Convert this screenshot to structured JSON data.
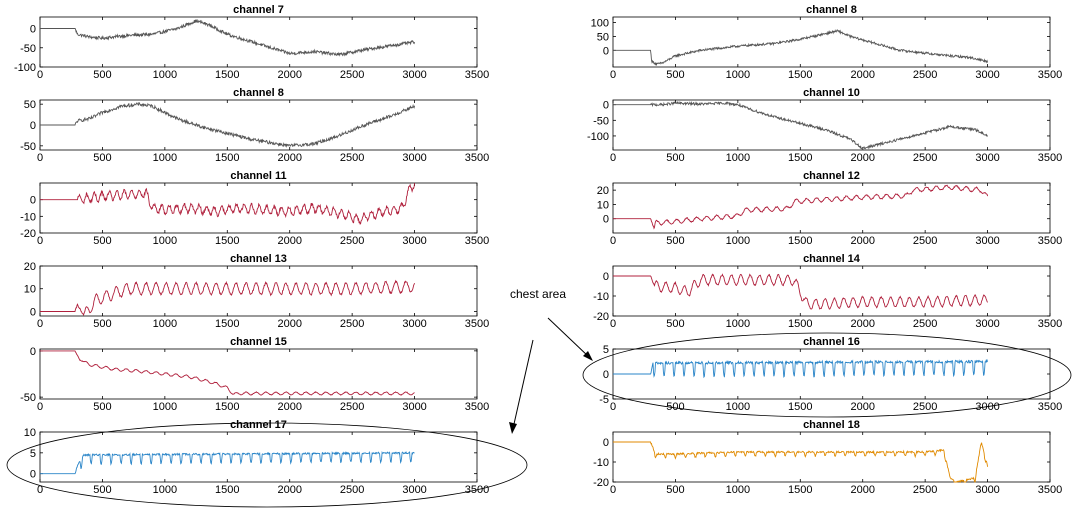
{
  "chart_data": [
    {
      "id": "p7",
      "type": "line",
      "title": "channel 7",
      "xlim": [
        0,
        3500
      ],
      "ylim": [
        -100,
        30
      ],
      "yticks": [
        -100,
        -50,
        0
      ],
      "xticks": [
        0,
        500,
        1000,
        1500,
        2000,
        2500,
        3000,
        3500
      ],
      "color": "#555555",
      "noise": 4,
      "series": [
        {
          "x": [
            0,
            280,
            300,
            400,
            500,
            700,
            900,
            1100,
            1250,
            1350,
            1500,
            1700,
            2000,
            2200,
            2400,
            2600,
            2800,
            3000
          ],
          "values": [
            0,
            0,
            -15,
            -22,
            -25,
            -18,
            -15,
            0,
            20,
            10,
            -15,
            -35,
            -65,
            -60,
            -68,
            -55,
            -45,
            -35
          ]
        }
      ]
    },
    {
      "id": "p8a",
      "type": "line",
      "title": "channel 8",
      "xlim": [
        0,
        3500
      ],
      "ylim": [
        -60,
        120
      ],
      "yticks": [
        0,
        50,
        100
      ],
      "xticks": [
        0,
        500,
        1000,
        1500,
        2000,
        2500,
        3000,
        3500
      ],
      "color": "#555555",
      "noise": 4,
      "series": [
        {
          "x": [
            0,
            300,
            310,
            350,
            400,
            500,
            700,
            1000,
            1300,
            1500,
            1700,
            1800,
            1900,
            2100,
            2300,
            2500,
            2700,
            2850,
            3000
          ],
          "values": [
            0,
            0,
            -40,
            -50,
            -45,
            -20,
            0,
            15,
            25,
            40,
            60,
            70,
            50,
            25,
            0,
            -10,
            -20,
            -25,
            -40
          ]
        }
      ]
    },
    {
      "id": "p8b",
      "type": "line",
      "title": "channel 8",
      "xlim": [
        0,
        3500
      ],
      "ylim": [
        -60,
        60
      ],
      "yticks": [
        -50,
        0,
        50
      ],
      "xticks": [
        0,
        500,
        1000,
        1500,
        2000,
        2500,
        3000,
        3500
      ],
      "color": "#555555",
      "noise": 4,
      "series": [
        {
          "x": [
            0,
            280,
            300,
            400,
            500,
            650,
            800,
            900,
            1100,
            1300,
            1500,
            1700,
            2000,
            2200,
            2400,
            2600,
            2800,
            3000
          ],
          "values": [
            0,
            0,
            10,
            15,
            30,
            45,
            50,
            45,
            15,
            -5,
            -20,
            -35,
            -50,
            -45,
            -25,
            0,
            20,
            45
          ]
        }
      ]
    },
    {
      "id": "p10",
      "type": "line",
      "title": "channel 10",
      "xlim": [
        0,
        3500
      ],
      "ylim": [
        -145,
        15
      ],
      "yticks": [
        -100,
        -50,
        0
      ],
      "xticks": [
        0,
        500,
        1000,
        1500,
        2000,
        2500,
        3000,
        3500
      ],
      "color": "#555555",
      "noise": 4,
      "series": [
        {
          "x": [
            0,
            300,
            400,
            500,
            700,
            900,
            1000,
            1100,
            1300,
            1500,
            1700,
            1900,
            2000,
            2100,
            2300,
            2500,
            2700,
            2900,
            3000
          ],
          "values": [
            0,
            0,
            0,
            5,
            2,
            5,
            0,
            -15,
            -40,
            -60,
            -80,
            -110,
            -140,
            -130,
            -110,
            -90,
            -70,
            -80,
            -100
          ]
        }
      ]
    },
    {
      "id": "p11",
      "type": "line",
      "title": "channel 11",
      "xlim": [
        0,
        3500
      ],
      "ylim": [
        -20,
        10
      ],
      "yticks": [
        -20,
        -10,
        0
      ],
      "xticks": [
        0,
        500,
        1000,
        1500,
        2000,
        2500,
        3000,
        3500
      ],
      "color": "#b0203c",
      "noise": 1,
      "wave": {
        "start": 300,
        "period": 60,
        "amp": 2.5
      },
      "series": [
        {
          "x": [
            0,
            300,
            500,
            700,
            850,
            900,
            1000,
            1200,
            1400,
            1600,
            1800,
            2000,
            2200,
            2400,
            2550,
            2700,
            2900,
            2950,
            3000
          ],
          "values": [
            0,
            0,
            2,
            3,
            4,
            -5,
            -6,
            -5,
            -7,
            -5,
            -6,
            -7,
            -5,
            -8,
            -12,
            -8,
            -5,
            5,
            10
          ]
        }
      ]
    },
    {
      "id": "p12",
      "type": "line",
      "title": "channel 12",
      "xlim": [
        0,
        3500
      ],
      "ylim": [
        -10,
        25
      ],
      "yticks": [
        0,
        10,
        20
      ],
      "xticks": [
        0,
        500,
        1000,
        1500,
        2000,
        2500,
        3000,
        3500
      ],
      "color": "#b0203c",
      "noise": 0.4,
      "wave": {
        "start": 330,
        "period": 80,
        "amp": 1.5
      },
      "series": [
        {
          "x": [
            0,
            300,
            330,
            340,
            500,
            700,
            1000,
            1050,
            1400,
            1450,
            1800,
            2000,
            2350,
            2400,
            2700,
            2950,
            3000
          ],
          "values": [
            0,
            0,
            -7,
            -3,
            -2,
            0,
            2,
            6,
            7,
            12,
            14,
            15,
            16,
            20,
            22,
            20,
            15
          ]
        }
      ]
    },
    {
      "id": "p13",
      "type": "line",
      "title": "channel 13",
      "xlim": [
        0,
        3500
      ],
      "ylim": [
        -2,
        20
      ],
      "yticks": [
        0,
        10,
        20
      ],
      "xticks": [
        0,
        500,
        1000,
        1500,
        2000,
        2500,
        3000,
        3500
      ],
      "color": "#b0203c",
      "noise": 0.4,
      "wave": {
        "start": 350,
        "period": 80,
        "amp": 2.5
      },
      "series": [
        {
          "x": [
            0,
            280,
            300,
            350,
            450,
            600,
            700,
            1000,
            1500,
            2000,
            2500,
            3000
          ],
          "values": [
            0,
            0,
            3,
            -2,
            5,
            8,
            10,
            10,
            10,
            10,
            10,
            11
          ]
        }
      ]
    },
    {
      "id": "p14",
      "type": "line",
      "title": "channel 14",
      "xlim": [
        0,
        3500
      ],
      "ylim": [
        -20,
        5
      ],
      "yticks": [
        -20,
        -10,
        0
      ],
      "xticks": [
        0,
        500,
        1000,
        1500,
        2000,
        2500,
        3000,
        3500
      ],
      "color": "#b0203c",
      "noise": 0.4,
      "wave": {
        "start": 330,
        "period": 75,
        "amp": 2.5
      },
      "series": [
        {
          "x": [
            0,
            300,
            330,
            500,
            600,
            700,
            900,
            1200,
            1450,
            1500,
            1550,
            1700,
            2000,
            2500,
            3000
          ],
          "values": [
            0,
            0,
            -5,
            -6,
            -8,
            -2,
            -2,
            -2,
            -2,
            -8,
            -14,
            -14,
            -13,
            -13,
            -12
          ]
        }
      ]
    },
    {
      "id": "p15",
      "type": "line",
      "title": "channel 15",
      "xlim": [
        0,
        3500
      ],
      "ylim": [
        -52,
        2
      ],
      "yticks": [
        -50,
        0
      ],
      "xticks": [
        0,
        500,
        1000,
        1500,
        2000,
        2500,
        3000,
        3500
      ],
      "color": "#b0203c",
      "noise": 0.3,
      "wave": {
        "start": 350,
        "period": 80,
        "amp": 1.5
      },
      "series": [
        {
          "x": [
            0,
            280,
            320,
            400,
            600,
            800,
            1000,
            1200,
            1400,
            1500,
            1550,
            1600,
            2000,
            2500,
            3000
          ],
          "values": [
            0,
            0,
            -10,
            -15,
            -20,
            -22,
            -25,
            -28,
            -35,
            -40,
            -47,
            -46,
            -46,
            -46,
            -46
          ]
        }
      ]
    },
    {
      "id": "p16",
      "type": "line",
      "title": "channel 16",
      "xlim": [
        0,
        3500
      ],
      "ylim": [
        -5,
        5
      ],
      "yticks": [
        -5,
        0,
        5
      ],
      "xticks": [
        0,
        500,
        1000,
        1500,
        2000,
        2500,
        3000,
        3500
      ],
      "color": "#2a85c8",
      "noise": 0.25,
      "wave": {
        "start": 320,
        "period": 80,
        "amp": 2.8,
        "shape": "dip"
      },
      "series": [
        {
          "x": [
            0,
            300,
            320,
            3000
          ],
          "values": [
            0,
            0,
            2.2,
            2.5
          ]
        }
      ]
    },
    {
      "id": "p17",
      "type": "line",
      "title": "channel 17",
      "xlim": [
        0,
        3500
      ],
      "ylim": [
        -2,
        10
      ],
      "yticks": [
        0,
        5,
        10
      ],
      "xticks": [
        0,
        500,
        1000,
        1500,
        2000,
        2500,
        3000,
        3500
      ],
      "color": "#2a85c8",
      "noise": 0.2,
      "wave": {
        "start": 320,
        "period": 80,
        "amp": 2.2,
        "shape": "dip"
      },
      "series": [
        {
          "x": [
            0,
            280,
            300,
            350,
            3000
          ],
          "values": [
            0,
            0,
            2,
            4.5,
            5
          ]
        }
      ]
    },
    {
      "id": "p18",
      "type": "line",
      "title": "channel 18",
      "xlim": [
        0,
        3500
      ],
      "ylim": [
        -20,
        5
      ],
      "yticks": [
        -20,
        -10,
        0
      ],
      "xticks": [
        0,
        500,
        1000,
        1500,
        2000,
        2500,
        3000,
        3500
      ],
      "color": "#e08a00",
      "noise": 0.4,
      "wave": {
        "start": 330,
        "period": 80,
        "amp": 2,
        "shape": "dip"
      },
      "series": [
        {
          "x": [
            0,
            300,
            340,
            500,
            1000,
            1500,
            2000,
            2500,
            2650,
            2700,
            2750,
            2900,
            2950,
            3000
          ],
          "values": [
            0,
            0,
            -6,
            -6,
            -5,
            -5,
            -5,
            -5,
            -4,
            -18,
            -20,
            -18,
            0,
            -12
          ]
        }
      ]
    }
  ],
  "annotation": {
    "text": "chest area"
  }
}
